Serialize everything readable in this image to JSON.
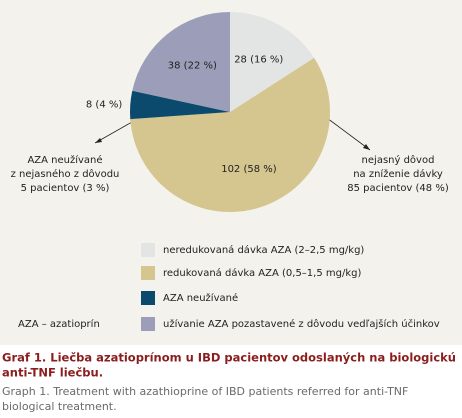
{
  "chart_data": {
    "type": "pie",
    "categories": [
      "neredukovaná dávka AZA (2–2,5 mg/kg)",
      "redukovaná dávka AZA (0,5–1,5 mg/kg)",
      "AZA neužívané",
      "užívanie AZA pozastavené z dôvodu vedľajších účinkov"
    ],
    "values": [
      28,
      102,
      8,
      38
    ],
    "value_labels": [
      "28 (16 %)",
      "102 (58 %)",
      "8 (4 %)",
      "38 (22 %)"
    ],
    "colors": [
      "#e3e4e4",
      "#d5c58f",
      "#0b4a6c",
      "#9c9db9"
    ],
    "annotations": [
      [
        "AZA neužívané",
        "z nejasného z dôvodu",
        "5 pacientov (3 %)"
      ],
      [
        "nejasný dôvod",
        "na zníženie dávky",
        "85 pacientov (48 %)"
      ]
    ],
    "note": "AZA – azatioprín",
    "caption": [
      "Graf 1. Liečba azatioprínom u IBD pacientov odoslaných na biologickú",
      "anti-TNF liečbu."
    ],
    "caption_en": [
      "Graph 1. Treatment with azathioprine of IBD patients referred for anti-TNF",
      "biological treatment."
    ]
  }
}
